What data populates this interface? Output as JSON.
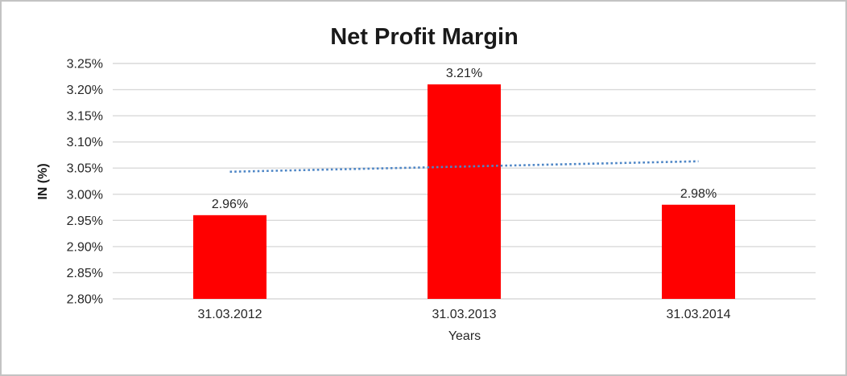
{
  "chart_data": {
    "type": "bar",
    "title": "Net Profit Margin",
    "xlabel": "Years",
    "ylabel": "IN (%)",
    "categories": [
      "31.03.2012",
      "31.03.2013",
      "31.03.2014"
    ],
    "values": [
      2.96,
      3.21,
      2.98
    ],
    "data_labels": [
      "2.96%",
      "3.21%",
      "2.98%"
    ],
    "ylim": [
      2.8,
      3.25
    ],
    "y_tick_step": 0.05,
    "y_tick_labels": [
      "2.80%",
      "2.85%",
      "2.90%",
      "2.95%",
      "3.00%",
      "3.05%",
      "3.10%",
      "3.15%",
      "3.20%",
      "3.25%"
    ],
    "grid": true,
    "legend_position": "none",
    "trendline": {
      "type": "linear",
      "style": "dotted",
      "start_value": 3.043,
      "end_value": 3.063
    },
    "colors": {
      "bar": "#ff0000",
      "trendline": "#4e86c6",
      "gridline": "#d9d9d9",
      "text": "#262626",
      "background": "#ffffff",
      "frame_border": "#c3c3c3"
    }
  }
}
